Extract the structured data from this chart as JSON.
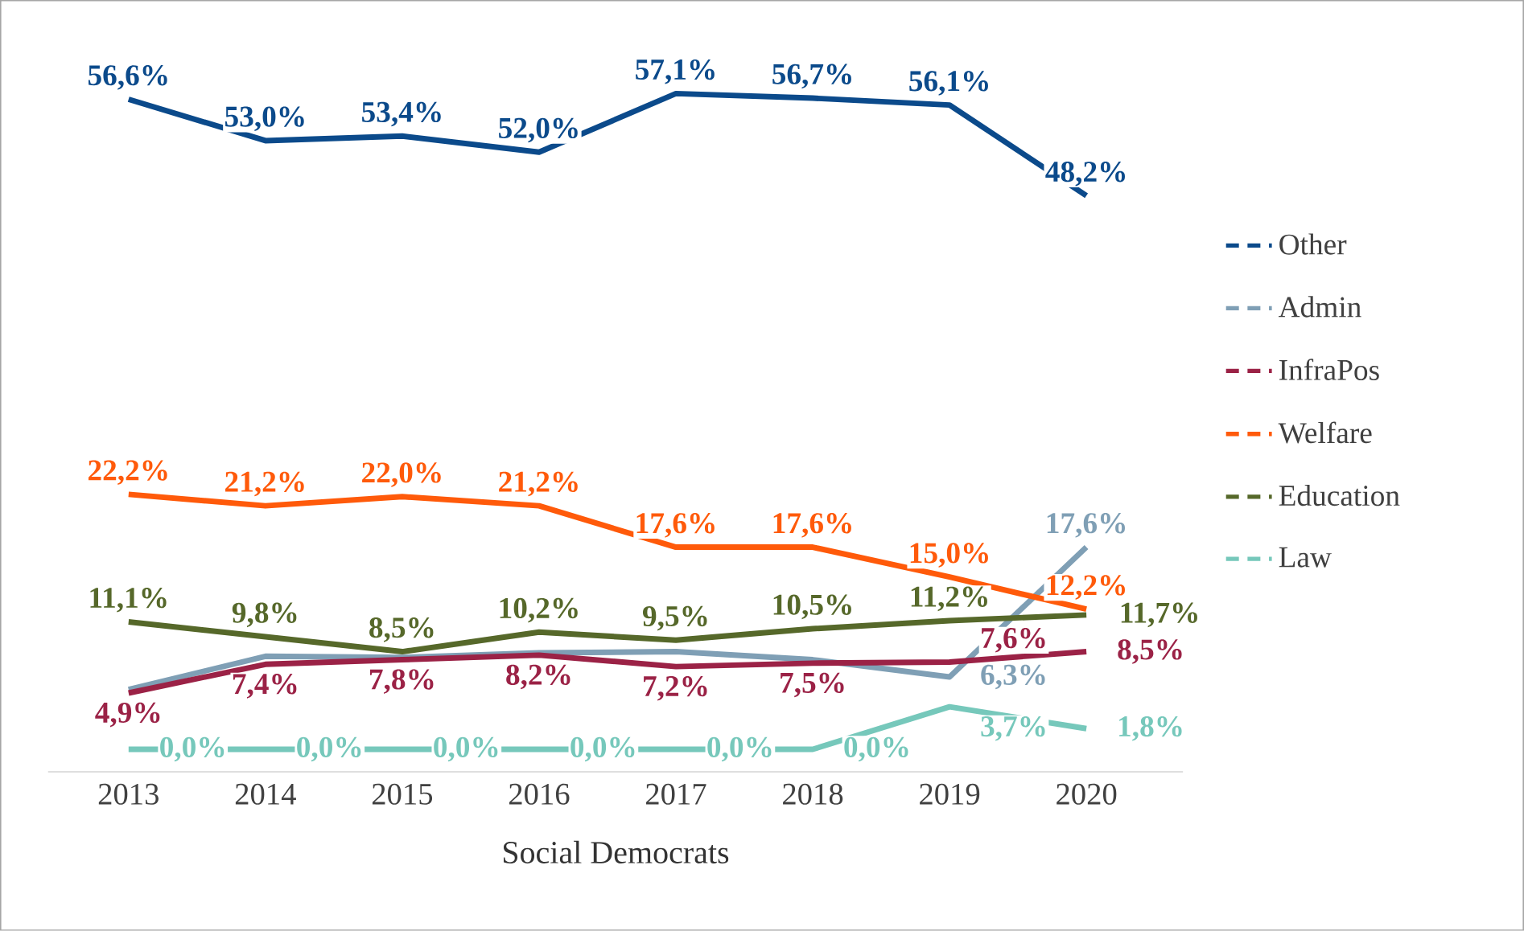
{
  "chart_data": {
    "type": "line",
    "xlabel": "Social Democrats",
    "categories": [
      "2013",
      "2014",
      "2015",
      "2016",
      "2017",
      "2018",
      "2019",
      "2020"
    ],
    "series": [
      {
        "name": "Other",
        "color": "#0b4a8b",
        "values": [
          56.6,
          53.0,
          53.4,
          52.0,
          57.1,
          56.7,
          56.1,
          48.2
        ],
        "value_labels": [
          "56,6%",
          "53,0%",
          "53,4%",
          "52,0%",
          "57,1%",
          "56,7%",
          "56,1%",
          "48,2%"
        ]
      },
      {
        "name": "Admin",
        "color": "#7f9fb5",
        "values": [
          5.2,
          8.1,
          8.0,
          8.4,
          8.5,
          7.8,
          6.3,
          17.6
        ],
        "value_labels": [
          null,
          null,
          null,
          null,
          null,
          null,
          "6,3%",
          "17,6%"
        ]
      },
      {
        "name": "InfraPos",
        "color": "#9b2246",
        "values": [
          4.9,
          7.4,
          7.8,
          8.2,
          7.2,
          7.5,
          7.6,
          8.5
        ],
        "value_labels": [
          "4,9%",
          "7,4%",
          "7,8%",
          "8,2%",
          "7,2%",
          "7,5%",
          "7,6%",
          "8,5%"
        ]
      },
      {
        "name": "Welfare",
        "color": "#ff5a0a",
        "values": [
          22.2,
          21.2,
          22.0,
          21.2,
          17.6,
          17.6,
          15.0,
          12.2
        ],
        "value_labels": [
          "22,2%",
          "21,2%",
          "22,0%",
          "21,2%",
          "17,6%",
          "17,6%",
          "15,0%",
          "12,2%"
        ]
      },
      {
        "name": "Education",
        "color": "#56682a",
        "values": [
          11.1,
          9.8,
          8.5,
          10.2,
          9.5,
          10.5,
          11.2,
          11.7
        ],
        "value_labels": [
          "11,1%",
          "9,8%",
          "8,5%",
          "10,2%",
          "9,5%",
          "10,5%",
          "11,2%",
          "11,7%"
        ]
      },
      {
        "name": "Law",
        "color": "#76c8bb",
        "values": [
          0.0,
          0.0,
          0.0,
          0.0,
          0.0,
          0.0,
          3.7,
          1.8
        ],
        "value_labels": [
          "0,0%",
          "0,0%",
          "0,0%",
          "0,0%",
          "0,0%",
          "0,0%",
          "3,7%",
          "1,8%"
        ]
      }
    ],
    "legend": "right",
    "grid": false,
    "marker": "none",
    "line_style": "solid"
  }
}
